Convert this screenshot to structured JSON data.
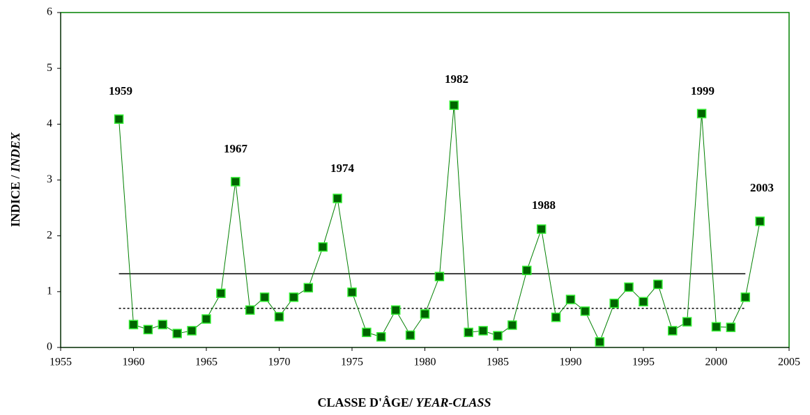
{
  "chart_data": {
    "type": "line",
    "x": [
      1959,
      1960,
      1961,
      1962,
      1963,
      1964,
      1965,
      1966,
      1967,
      1968,
      1969,
      1970,
      1971,
      1972,
      1973,
      1974,
      1975,
      1976,
      1977,
      1978,
      1979,
      1980,
      1981,
      1982,
      1983,
      1984,
      1985,
      1986,
      1987,
      1988,
      1989,
      1990,
      1991,
      1992,
      1993,
      1994,
      1995,
      1996,
      1997,
      1998,
      1999,
      2000,
      2001,
      2002,
      2003
    ],
    "series": [
      {
        "color": "#008000",
        "marker_color": "#006400",
        "marker_edge": "#33ee33",
        "values": [
          4.09,
          0.41,
          0.32,
          0.41,
          0.25,
          0.3,
          0.51,
          0.97,
          2.97,
          0.67,
          0.9,
          0.55,
          0.9,
          1.07,
          1.8,
          2.67,
          0.99,
          0.27,
          0.19,
          0.67,
          0.22,
          0.6,
          1.27,
          4.34,
          0.27,
          0.3,
          0.21,
          0.4,
          1.38,
          2.12,
          0.54,
          0.86,
          0.65,
          0.1,
          0.79,
          1.08,
          0.82,
          1.13,
          0.3,
          0.46,
          4.19,
          0.37,
          0.36,
          0.9,
          2.26
        ]
      }
    ],
    "hlines": [
      {
        "value": 1.32,
        "style": "solid"
      },
      {
        "value": 0.7,
        "style": "dotted"
      }
    ],
    "annotations": [
      "1959",
      "1967",
      "1974",
      "1982",
      "1988",
      "1999",
      "2003"
    ],
    "xlim": [
      1955,
      2005
    ],
    "xticks": [
      1955,
      1960,
      1965,
      1970,
      1975,
      1980,
      1985,
      1990,
      1995,
      2000,
      2005
    ],
    "ylim": [
      0,
      6
    ],
    "yticks": [
      0,
      1,
      2,
      3,
      4,
      5,
      6
    ],
    "xlabel": {
      "main": "CLASSE D'ÂGE/ ",
      "italic": "YEAR-CLASS"
    },
    "ylabel": {
      "main": "INDICE / ",
      "italic": "INDEX"
    }
  }
}
